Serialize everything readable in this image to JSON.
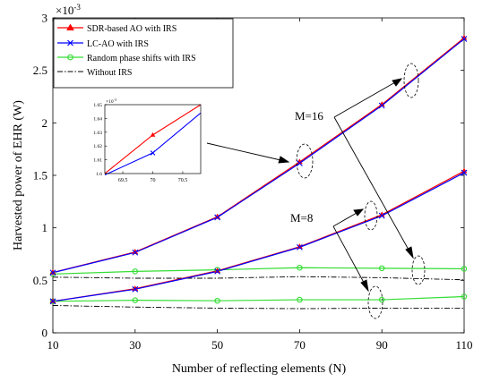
{
  "chart_data": {
    "type": "line",
    "xlabel": "Number of reflecting elements (N)",
    "ylabel": "Harvested power of EHR (W)",
    "y_multiplier_label": "×10",
    "y_multiplier_exp": "-3",
    "xlim": [
      10,
      110
    ],
    "ylim": [
      0,
      3
    ],
    "xticks": [
      "10",
      "30",
      "50",
      "70",
      "90",
      "110"
    ],
    "yticks": [
      "0",
      "0.5",
      "1",
      "1.5",
      "2",
      "2.5",
      "3"
    ],
    "grid": false,
    "legend_position": "top-left",
    "series": [
      {
        "name": "SDR-based AO with IRS",
        "color": "#ff0000",
        "marker": "triangle",
        "dash": "solid",
        "group": "M=16",
        "x": [
          10,
          30,
          50,
          70,
          90,
          110
        ],
        "y": [
          0.575,
          0.77,
          1.105,
          1.628,
          2.175,
          2.81
        ]
      },
      {
        "name": "LC-AO with IRS",
        "color": "#0000ff",
        "marker": "x",
        "dash": "solid",
        "group": "M=16",
        "x": [
          10,
          30,
          50,
          70,
          90,
          110
        ],
        "y": [
          0.573,
          0.765,
          1.1,
          1.615,
          2.165,
          2.8
        ]
      },
      {
        "name": "Random phase shifts with IRS",
        "color": "#33dd33",
        "marker": "circle",
        "dash": "solid",
        "group": "M=16",
        "x": [
          10,
          30,
          50,
          70,
          90,
          110
        ],
        "y": [
          0.56,
          0.585,
          0.6,
          0.62,
          0.615,
          0.61
        ]
      },
      {
        "name": "Without IRS",
        "color": "#000000",
        "marker": "none",
        "dash": "dashdot",
        "group": "M=16",
        "x": [
          10,
          30,
          50,
          70,
          90,
          110
        ],
        "y": [
          0.53,
          0.52,
          0.52,
          0.535,
          0.525,
          0.505
        ]
      },
      {
        "name": "SDR-based AO with IRS",
        "color": "#ff0000",
        "marker": "triangle",
        "dash": "solid",
        "group": "M=8",
        "x": [
          10,
          30,
          50,
          70,
          90,
          110
        ],
        "y": [
          0.3,
          0.42,
          0.59,
          0.82,
          1.125,
          1.54
        ]
      },
      {
        "name": "LC-AO with IRS",
        "color": "#0000ff",
        "marker": "x",
        "dash": "solid",
        "group": "M=8",
        "x": [
          10,
          30,
          50,
          70,
          90,
          110
        ],
        "y": [
          0.3,
          0.415,
          0.585,
          0.815,
          1.115,
          1.525
        ]
      },
      {
        "name": "Random phase shifts with IRS",
        "color": "#33dd33",
        "marker": "circle",
        "dash": "solid",
        "group": "M=8",
        "x": [
          10,
          30,
          50,
          70,
          90,
          110
        ],
        "y": [
          0.3,
          0.31,
          0.305,
          0.315,
          0.315,
          0.345
        ]
      },
      {
        "name": "Without IRS",
        "color": "#000000",
        "marker": "none",
        "dash": "dashdot",
        "group": "M=8",
        "x": [
          10,
          30,
          50,
          70,
          90,
          110
        ],
        "y": [
          0.26,
          0.245,
          0.235,
          0.23,
          0.235,
          0.235
        ]
      }
    ],
    "annotations": [
      "M=16",
      "M=8"
    ],
    "inset": {
      "xlim": [
        69.2,
        70.8
      ],
      "ylim": [
        1.6,
        1.65
      ],
      "xticks": [
        "69.5",
        "70",
        "70.5"
      ],
      "yticks": [
        "1.6",
        "1.61",
        "1.62",
        "1.63",
        "1.64",
        "1.65"
      ],
      "y_multiplier_label": "×10",
      "y_multiplier_exp": "-3",
      "series": [
        {
          "name": "SDR-based AO with IRS",
          "color": "#ff0000",
          "marker": "triangle",
          "x": [
            69.2,
            70,
            70.8
          ],
          "y": [
            1.6,
            1.628,
            1.65
          ]
        },
        {
          "name": "LC-AO with IRS",
          "color": "#0000ff",
          "marker": "x",
          "x": [
            69.2,
            70,
            70.8
          ],
          "y": [
            1.599,
            1.615,
            1.644
          ]
        }
      ]
    }
  }
}
